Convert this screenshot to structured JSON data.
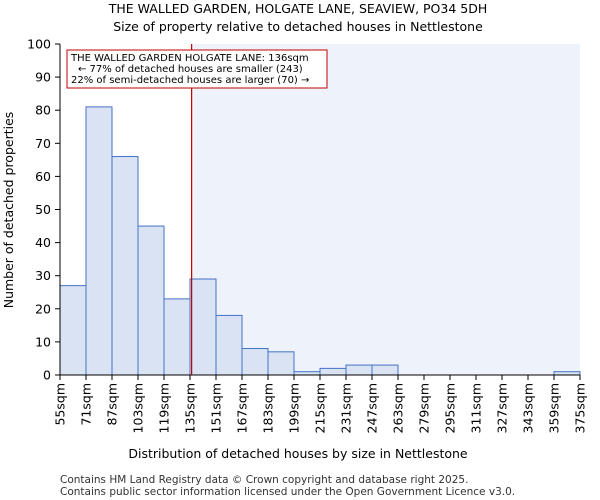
{
  "chart_data": {
    "type": "bar",
    "title": "THE WALLED GARDEN, HOLGATE LANE, SEAVIEW, PO34 5DH",
    "subtitle": "Size of property relative to detached houses in Nettlestone",
    "xlabel": "Distribution of detached houses by size in Nettlestone",
    "ylabel": "Number of detached properties",
    "ylim": [
      0,
      100
    ],
    "yticks": [
      0,
      10,
      20,
      30,
      40,
      50,
      60,
      70,
      80,
      90,
      100
    ],
    "bin_edges": [
      55,
      71,
      87,
      103,
      119,
      135,
      151,
      167,
      183,
      199,
      215,
      231,
      247,
      263,
      279,
      295,
      311,
      327,
      343,
      359,
      375
    ],
    "tick_labels": [
      "55sqm",
      "71sqm",
      "87sqm",
      "103sqm",
      "119sqm",
      "135sqm",
      "151sqm",
      "167sqm",
      "183sqm",
      "199sqm",
      "215sqm",
      "231sqm",
      "247sqm",
      "263sqm",
      "279sqm",
      "295sqm",
      "311sqm",
      "327sqm",
      "343sqm",
      "359sqm",
      "375sqm"
    ],
    "values": [
      27,
      81,
      66,
      45,
      23,
      29,
      18,
      8,
      7,
      1,
      2,
      3,
      3,
      0,
      0,
      0,
      0,
      0,
      0,
      1
    ],
    "property_size": 136,
    "annotation": {
      "line1": "THE WALLED GARDEN HOLGATE LANE: 136sqm",
      "line2": "← 77% of detached houses are smaller (243)",
      "line3": "22% of semi-detached houses are larger (70) →"
    },
    "colors": {
      "bar_fill": "#dae3f3",
      "bar_edge": "#4472c4",
      "marker": "#c00000",
      "shade": "#eef2fa"
    }
  },
  "footer": {
    "line1": "Contains HM Land Registry data © Crown copyright and database right 2025.",
    "line2": "Contains public sector information licensed under the Open Government Licence v3.0."
  }
}
